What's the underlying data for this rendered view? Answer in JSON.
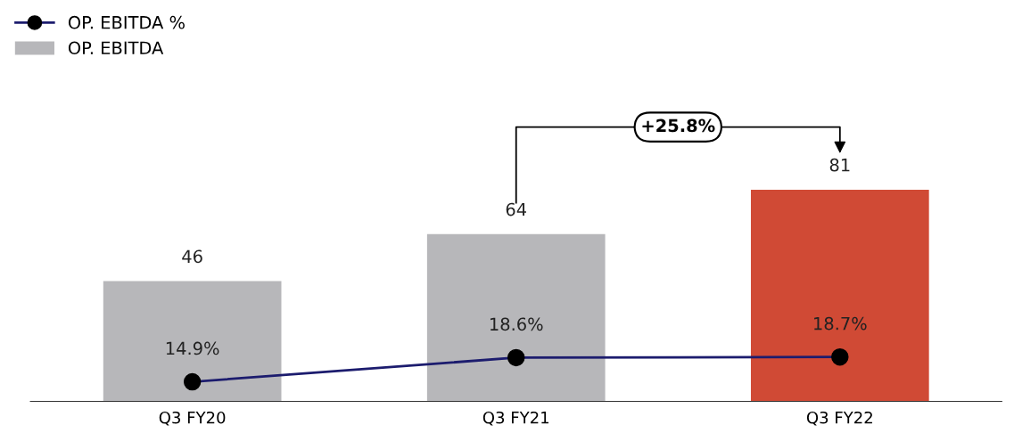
{
  "chart_data": {
    "type": "bar",
    "categories": [
      "Q3 FY20",
      "Q3 FY21",
      "Q3 FY22"
    ],
    "series": [
      {
        "name": "OP. EBITDA",
        "values": [
          46,
          64,
          81
        ],
        "colors": [
          "#b7b7ba",
          "#b7b7ba",
          "#d04a35"
        ]
      },
      {
        "name": "OP. EBITDA %",
        "type": "line",
        "axis": "y2",
        "color": "#1c1c6e",
        "values": [
          14.9,
          18.6,
          18.7
        ],
        "value_labels": [
          "14.9%",
          "18.6%",
          "18.7%"
        ]
      }
    ],
    "data_labels": true,
    "marker": "circle",
    "legend": "top left",
    "tick_labels": "x",
    "grid": false,
    "annotations": [
      "+25.8%"
    ]
  }
}
